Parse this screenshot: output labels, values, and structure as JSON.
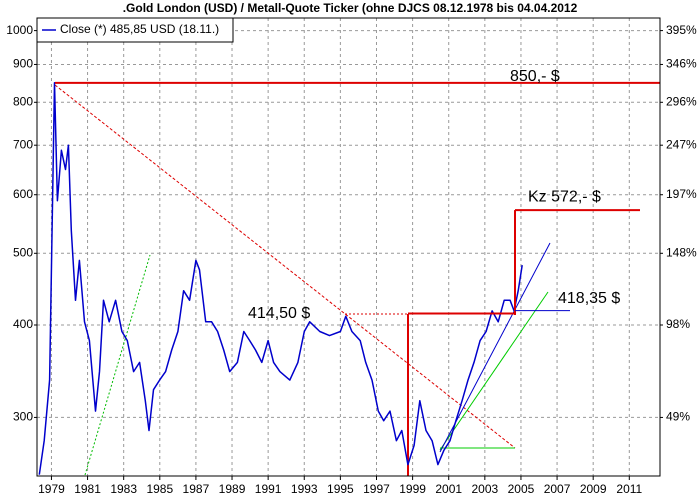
{
  "chart_data": {
    "type": "line",
    "title": ".Gold London (USD) / Metall-Quote Ticker (ohne DJCS 08.12.1978 bis 04.04.2012",
    "log_y": true,
    "grid": true,
    "legend": "top-left",
    "xlim": [
      1978.2,
      2012.7
    ],
    "xticks": [
      1979,
      1981,
      1983,
      1985,
      1987,
      1989,
      1991,
      1993,
      1995,
      1997,
      1999,
      2001,
      2003,
      2005,
      2007,
      2009,
      2011
    ],
    "ylim": [
      250,
      1040
    ],
    "yticks": [
      300,
      400,
      500,
      600,
      700,
      800,
      900,
      1000
    ],
    "y2lim": [
      250,
      1040
    ],
    "y2ticks": [
      {
        "value": 300,
        "label": "49%"
      },
      {
        "value": 400,
        "label": "98%"
      },
      {
        "value": 500,
        "label": "148%"
      },
      {
        "value": 600,
        "label": "197%"
      },
      {
        "value": 700,
        "label": "247%"
      },
      {
        "value": 800,
        "label": "296%"
      },
      {
        "value": 900,
        "label": "346%"
      },
      {
        "value": 1000,
        "label": "395%"
      }
    ],
    "series": [
      {
        "name": "Close (*) 485,85 USD (18.11.)",
        "color": "#0000cc",
        "x": [
          1978.33,
          1978.6,
          1978.9,
          1979.17,
          1979.33,
          1979.55,
          1979.78,
          1979.94,
          1980.1,
          1980.33,
          1980.55,
          1980.83,
          1981.1,
          1981.44,
          1981.66,
          1981.88,
          1982.2,
          1982.55,
          1982.9,
          1983.2,
          1983.55,
          1983.88,
          1984.2,
          1984.4,
          1984.65,
          1984.99,
          1985.32,
          1985.66,
          1986.0,
          1986.32,
          1986.65,
          1987.0,
          1987.2,
          1987.54,
          1987.87,
          1988.2,
          1988.54,
          1988.87,
          1989.3,
          1989.65,
          1989.98,
          1990.3,
          1990.65,
          1991.0,
          1991.3,
          1991.65,
          1992.2,
          1992.65,
          1993.0,
          1993.3,
          1993.86,
          1994.4,
          1995.0,
          1995.3,
          1995.64,
          1996.1,
          1996.4,
          1996.75,
          1997.1,
          1997.4,
          1997.75,
          1998.1,
          1998.4,
          1998.74,
          1999.08,
          1999.4,
          1999.74,
          2000.08,
          2000.4,
          2000.74,
          2001.07,
          2001.4,
          2001.74,
          2002.07,
          2002.4,
          2002.74,
          2003.07,
          2003.4,
          2003.74,
          2004.07,
          2004.4,
          2004.62,
          2004.85,
          2005.07
        ],
        "values": [
          251,
          279,
          337,
          850,
          589,
          689,
          649,
          700,
          537,
          432,
          489,
          404,
          381,
          306,
          346,
          432,
          404,
          432,
          392,
          381,
          346,
          356,
          316,
          288,
          327,
          337,
          346,
          370,
          392,
          445,
          432,
          489,
          475,
          404,
          404,
          392,
          370,
          346,
          356,
          392,
          381,
          370,
          356,
          381,
          356,
          346,
          337,
          356,
          392,
          404,
          392,
          387,
          392,
          411,
          392,
          381,
          356,
          337,
          306,
          297,
          306,
          279,
          288,
          259,
          275,
          316,
          288,
          279,
          259,
          271,
          279,
          297,
          316,
          337,
          356,
          381,
          392,
          418,
          404,
          432,
          432,
          418,
          445,
          482
        ]
      }
    ],
    "annotations": [
      {
        "text": "850,- $",
        "value": 850,
        "color": "#dd0000"
      },
      {
        "text": "Kz 572,- $",
        "value": 572,
        "color": "#dd0000"
      },
      {
        "text": "414,50 $",
        "value": 414.5,
        "color": "#dd0000"
      },
      {
        "text": "418,35 $",
        "value": 418.35,
        "color": "#0000cc"
      }
    ]
  }
}
